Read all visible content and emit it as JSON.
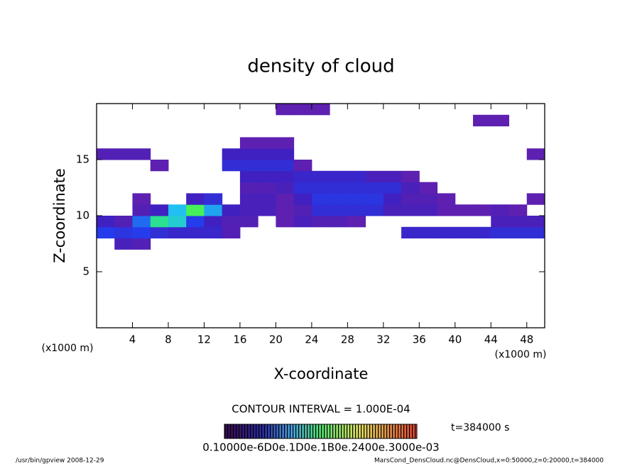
{
  "chart_data": {
    "type": "heatmap",
    "title": "density of cloud",
    "xlabel": "X-coordinate",
    "ylabel": "Z-coordinate",
    "xunit": "(x1000 m)",
    "xlim": [
      0,
      50
    ],
    "ylim": [
      0,
      20
    ],
    "xticks": [
      4,
      8,
      12,
      16,
      20,
      24,
      28,
      32,
      36,
      40,
      44,
      48
    ],
    "yticks": [
      5,
      10,
      15
    ],
    "x": [
      0,
      2,
      4,
      6,
      8,
      10,
      12,
      14,
      16,
      18,
      20,
      22,
      24,
      26,
      28,
      30,
      32,
      34,
      36,
      38,
      40,
      42,
      44,
      46,
      48,
      50
    ],
    "z": [
      0,
      1,
      2,
      3,
      4,
      5,
      6,
      7,
      8,
      9,
      10,
      11,
      12,
      13,
      14,
      15,
      16,
      17,
      18,
      19,
      20
    ],
    "clim": [
      0,
      3
    ],
    "values": [
      [
        null,
        null,
        null,
        null,
        null,
        null,
        null,
        null,
        null,
        null,
        null,
        null,
        null,
        null,
        null,
        null,
        null,
        null,
        null,
        null,
        null,
        null,
        null,
        null,
        null
      ],
      [
        null,
        null,
        null,
        null,
        null,
        null,
        null,
        null,
        null,
        null,
        null,
        null,
        null,
        null,
        null,
        null,
        null,
        null,
        null,
        null,
        null,
        null,
        null,
        null,
        null
      ],
      [
        null,
        null,
        null,
        null,
        null,
        null,
        null,
        null,
        null,
        null,
        null,
        null,
        null,
        null,
        null,
        null,
        null,
        null,
        null,
        null,
        null,
        null,
        null,
        null,
        null
      ],
      [
        null,
        null,
        null,
        null,
        null,
        null,
        null,
        null,
        null,
        null,
        null,
        null,
        null,
        null,
        null,
        null,
        null,
        null,
        null,
        null,
        null,
        null,
        null,
        null,
        null
      ],
      [
        null,
        null,
        null,
        null,
        null,
        null,
        null,
        null,
        null,
        null,
        null,
        null,
        null,
        null,
        null,
        null,
        null,
        null,
        null,
        null,
        null,
        null,
        null,
        null,
        null
      ],
      [
        null,
        null,
        null,
        null,
        null,
        null,
        null,
        null,
        null,
        null,
        null,
        null,
        null,
        null,
        null,
        null,
        null,
        null,
        null,
        null,
        null,
        null,
        null,
        null,
        null
      ],
      [
        null,
        null,
        null,
        null,
        null,
        null,
        null,
        null,
        null,
        null,
        null,
        null,
        null,
        null,
        null,
        null,
        null,
        null,
        null,
        null,
        null,
        null,
        null,
        null,
        null
      ],
      [
        null,
        0.5,
        0.4,
        null,
        null,
        null,
        null,
        null,
        null,
        null,
        null,
        null,
        null,
        null,
        null,
        null,
        null,
        null,
        null,
        null,
        null,
        null,
        null,
        null,
        null
      ],
      [
        1.0,
        0.9,
        1.0,
        0.8,
        0.7,
        0.7,
        0.7,
        0.4,
        null,
        null,
        null,
        null,
        null,
        null,
        null,
        null,
        null,
        0.7,
        0.7,
        0.7,
        0.7,
        0.7,
        0.8,
        0.8,
        0.8
      ],
      [
        0.6,
        0.4,
        1.2,
        1.8,
        1.6,
        1.0,
        0.6,
        0.4,
        0.4,
        null,
        0.3,
        0.5,
        0.4,
        0.4,
        0.3,
        null,
        null,
        null,
        null,
        null,
        null,
        null,
        0.5,
        0.5,
        0.5
      ],
      [
        null,
        null,
        0.4,
        0.6,
        1.5,
        2.0,
        1.4,
        0.6,
        0.5,
        0.5,
        0.3,
        0.4,
        0.8,
        0.8,
        0.8,
        0.8,
        0.5,
        0.5,
        0.5,
        0.3,
        0.3,
        0.3,
        0.4,
        0.3,
        null
      ],
      [
        null,
        null,
        0.3,
        null,
        null,
        0.6,
        0.8,
        null,
        0.5,
        0.5,
        0.3,
        0.6,
        0.9,
        0.9,
        0.9,
        0.9,
        0.6,
        0.4,
        0.4,
        0.3,
        null,
        null,
        null,
        null,
        0.3
      ],
      [
        null,
        null,
        null,
        null,
        null,
        null,
        null,
        null,
        0.4,
        0.4,
        0.5,
        0.8,
        0.8,
        0.8,
        0.8,
        0.8,
        0.8,
        0.5,
        0.3,
        null,
        null,
        null,
        null,
        null,
        null
      ],
      [
        null,
        null,
        null,
        null,
        null,
        null,
        null,
        null,
        0.6,
        0.6,
        0.6,
        0.7,
        0.7,
        0.7,
        0.7,
        0.5,
        0.5,
        0.3,
        null,
        null,
        null,
        null,
        null,
        null,
        null
      ],
      [
        null,
        null,
        null,
        0.3,
        null,
        null,
        null,
        0.8,
        0.8,
        0.8,
        0.8,
        0.3,
        null,
        null,
        null,
        null,
        null,
        null,
        null,
        null,
        null,
        null,
        null,
        null,
        null
      ],
      [
        0.4,
        0.4,
        0.4,
        null,
        null,
        null,
        null,
        0.6,
        0.6,
        0.6,
        0.6,
        null,
        null,
        null,
        null,
        null,
        null,
        null,
        null,
        null,
        null,
        null,
        null,
        null,
        0.3
      ],
      [
        null,
        null,
        null,
        null,
        null,
        null,
        null,
        null,
        0.3,
        0.3,
        0.3,
        null,
        null,
        null,
        null,
        null,
        null,
        null,
        null,
        null,
        null,
        null,
        null,
        null,
        null
      ],
      [
        null,
        null,
        null,
        null,
        null,
        null,
        null,
        null,
        null,
        null,
        null,
        null,
        null,
        null,
        null,
        null,
        null,
        null,
        null,
        null,
        null,
        null,
        null,
        null,
        null
      ],
      [
        null,
        null,
        null,
        null,
        null,
        null,
        null,
        null,
        null,
        null,
        null,
        null,
        null,
        null,
        null,
        null,
        null,
        null,
        null,
        null,
        null,
        0.3,
        0.3,
        null,
        null
      ],
      [
        null,
        null,
        null,
        null,
        null,
        null,
        null,
        null,
        null,
        null,
        0.3,
        0.3,
        0.3,
        null,
        null,
        null,
        null,
        null,
        null,
        null,
        null,
        null,
        null,
        null,
        null
      ]
    ],
    "contour_interval": "CONTOUR INTERVAL = 1.000E-04",
    "colorbar_labels": "0.10000e-6D0e.1D0e.1B0e.2400e.3000e-03",
    "time_label": "t=384000 s",
    "footer_left": "/usr/bin/gpview   2008-12-29",
    "footer_right": "MarsCond_DensCloud.nc@DensCloud,x=0:50000,z=0:20000,t=384000"
  }
}
